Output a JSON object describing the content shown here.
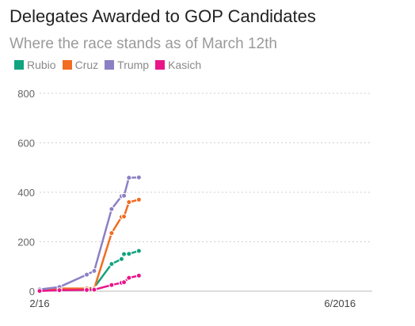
{
  "chart_data": {
    "type": "line",
    "title": "Delegates Awarded to GOP Candidates",
    "subtitle": "Where the race stands as of March 12th",
    "xlabel": "",
    "ylabel": "",
    "ylim": [
      0,
      800
    ],
    "yticks": [
      0,
      200,
      400,
      600,
      800
    ],
    "xlim": [
      "2016-02-01",
      "2016-06-14"
    ],
    "xtick_labels": [
      {
        "date": "2016-02-01",
        "label": "2/16"
      },
      {
        "date": "2016-06-01",
        "label": "6/2016"
      }
    ],
    "grid": true,
    "legend": "top-left",
    "series": [
      {
        "name": "Rubio",
        "color": "#10a37f",
        "points": [
          {
            "date": "2016-02-01",
            "value": 7
          },
          {
            "date": "2016-02-09",
            "value": 10
          },
          {
            "date": "2016-02-20",
            "value": 10
          },
          {
            "date": "2016-02-23",
            "value": 15
          },
          {
            "date": "2016-03-01",
            "value": 110
          },
          {
            "date": "2016-03-05",
            "value": 130
          },
          {
            "date": "2016-03-06",
            "value": 150
          },
          {
            "date": "2016-03-08",
            "value": 151
          },
          {
            "date": "2016-03-12",
            "value": 163
          }
        ]
      },
      {
        "name": "Cruz",
        "color": "#f26c22",
        "points": [
          {
            "date": "2016-02-01",
            "value": 8
          },
          {
            "date": "2016-02-09",
            "value": 11
          },
          {
            "date": "2016-02-20",
            "value": 11
          },
          {
            "date": "2016-02-23",
            "value": 11
          },
          {
            "date": "2016-03-01",
            "value": 235
          },
          {
            "date": "2016-03-05",
            "value": 300
          },
          {
            "date": "2016-03-06",
            "value": 302
          },
          {
            "date": "2016-03-08",
            "value": 360
          },
          {
            "date": "2016-03-12",
            "value": 370
          }
        ]
      },
      {
        "name": "Trump",
        "color": "#8c7fc4",
        "points": [
          {
            "date": "2016-02-01",
            "value": 7
          },
          {
            "date": "2016-02-09",
            "value": 17
          },
          {
            "date": "2016-02-20",
            "value": 67
          },
          {
            "date": "2016-02-23",
            "value": 82
          },
          {
            "date": "2016-03-01",
            "value": 332
          },
          {
            "date": "2016-03-05",
            "value": 384
          },
          {
            "date": "2016-03-06",
            "value": 386
          },
          {
            "date": "2016-03-08",
            "value": 459
          },
          {
            "date": "2016-03-12",
            "value": 460
          }
        ]
      },
      {
        "name": "Kasich",
        "color": "#e8168a",
        "points": [
          {
            "date": "2016-02-01",
            "value": 1
          },
          {
            "date": "2016-02-09",
            "value": 4
          },
          {
            "date": "2016-02-20",
            "value": 5
          },
          {
            "date": "2016-02-23",
            "value": 6
          },
          {
            "date": "2016-03-01",
            "value": 25
          },
          {
            "date": "2016-03-05",
            "value": 34
          },
          {
            "date": "2016-03-06",
            "value": 36
          },
          {
            "date": "2016-03-08",
            "value": 54
          },
          {
            "date": "2016-03-12",
            "value": 63
          }
        ]
      }
    ]
  }
}
